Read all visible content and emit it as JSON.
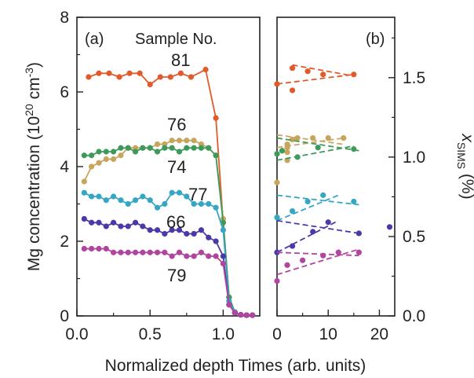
{
  "ylabel_left": "Mg concentration (10",
  "ylabel_left_sup": "20",
  "ylabel_left_unit": " cm",
  "ylabel_left_unit_sup": "-3",
  "ylabel_left_close": ")",
  "xlabel": "Normalized depth Times (arb. units)",
  "ylabel_right_main": "x",
  "ylabel_right_sub": "SIMS",
  "ylabel_right_unit": " (%)",
  "legend_title": "Sample No.",
  "panel_a_label": "(a)",
  "panel_b_label": "(b)",
  "colors": {
    "81": "#e05a2b",
    "76": "#c9a55c",
    "74": "#3d9a5a",
    "77": "#35a7c4",
    "66": "#4a3aa8",
    "79": "#b0449e"
  },
  "chart_data": [
    {
      "type": "line",
      "panel": "a",
      "xlim": [
        0.0,
        1.25
      ],
      "ylim": [
        0,
        8
      ],
      "xticks": [
        "0.0",
        "0.5",
        "1.0"
      ],
      "yticks": [
        "0",
        "2",
        "4",
        "6",
        "8"
      ],
      "series": [
        {
          "name": "81",
          "x": [
            0.08,
            0.15,
            0.22,
            0.29,
            0.36,
            0.43,
            0.5,
            0.57,
            0.64,
            0.71,
            0.78,
            0.88,
            0.95,
            1.0,
            1.04,
            1.08,
            1.12,
            1.16,
            1.2
          ],
          "y": [
            6.4,
            6.5,
            6.5,
            6.4,
            6.5,
            6.5,
            6.2,
            6.4,
            6.4,
            6.5,
            6.4,
            6.6,
            5.3,
            2.5,
            0.5,
            0.1,
            0.03,
            0.02,
            0.02
          ]
        },
        {
          "name": "76",
          "x": [
            0.05,
            0.1,
            0.15,
            0.2,
            0.25,
            0.3,
            0.35,
            0.4,
            0.45,
            0.5,
            0.55,
            0.6,
            0.65,
            0.7,
            0.75,
            0.8,
            0.85,
            0.9,
            0.95,
            1.0,
            1.04,
            1.08,
            1.12,
            1.16,
            1.2
          ],
          "y": [
            3.6,
            4.0,
            4.1,
            4.2,
            4.2,
            4.3,
            4.5,
            4.5,
            4.5,
            4.5,
            4.6,
            4.6,
            4.7,
            4.7,
            4.7,
            4.7,
            4.6,
            4.5,
            4.3,
            2.6,
            0.5,
            0.1,
            0.03,
            0.02,
            0.02
          ]
        },
        {
          "name": "74",
          "x": [
            0.05,
            0.1,
            0.15,
            0.2,
            0.25,
            0.3,
            0.35,
            0.4,
            0.45,
            0.5,
            0.55,
            0.6,
            0.65,
            0.7,
            0.75,
            0.8,
            0.85,
            0.9,
            0.95,
            1.0,
            1.04,
            1.08,
            1.12,
            1.16,
            1.2
          ],
          "y": [
            4.3,
            4.3,
            4.4,
            4.4,
            4.4,
            4.5,
            4.5,
            4.4,
            4.5,
            4.5,
            4.4,
            4.5,
            4.5,
            4.4,
            4.5,
            4.5,
            4.5,
            4.5,
            4.3,
            2.5,
            0.5,
            0.1,
            0.03,
            0.02,
            0.02
          ]
        },
        {
          "name": "77",
          "x": [
            0.05,
            0.1,
            0.15,
            0.2,
            0.25,
            0.3,
            0.35,
            0.4,
            0.45,
            0.5,
            0.55,
            0.6,
            0.65,
            0.7,
            0.75,
            0.8,
            0.85,
            0.9,
            0.95,
            1.0,
            1.04,
            1.08,
            1.12,
            1.16,
            1.2
          ],
          "y": [
            3.3,
            3.2,
            3.2,
            3.1,
            3.2,
            3.1,
            3.0,
            3.1,
            3.2,
            3.1,
            2.9,
            3.0,
            3.3,
            3.3,
            3.2,
            3.0,
            3.0,
            3.0,
            2.9,
            2.3,
            0.4,
            0.1,
            0.03,
            0.02,
            0.02
          ]
        },
        {
          "name": "66",
          "x": [
            0.05,
            0.1,
            0.15,
            0.2,
            0.25,
            0.3,
            0.35,
            0.4,
            0.45,
            0.5,
            0.55,
            0.6,
            0.65,
            0.7,
            0.75,
            0.8,
            0.85,
            0.9,
            0.95,
            1.0,
            1.04,
            1.08,
            1.12,
            1.16,
            1.2
          ],
          "y": [
            2.6,
            2.5,
            2.5,
            2.4,
            2.5,
            2.4,
            2.4,
            2.5,
            2.4,
            2.3,
            2.3,
            2.2,
            2.3,
            2.3,
            2.2,
            2.2,
            2.3,
            2.1,
            2.0,
            1.6,
            0.3,
            0.08,
            0.03,
            0.02,
            0.02
          ]
        },
        {
          "name": "79",
          "x": [
            0.05,
            0.1,
            0.15,
            0.2,
            0.25,
            0.3,
            0.35,
            0.4,
            0.45,
            0.5,
            0.55,
            0.6,
            0.65,
            0.7,
            0.75,
            0.8,
            0.85,
            0.9,
            0.95,
            1.0,
            1.04,
            1.08,
            1.12,
            1.16,
            1.2
          ],
          "y": [
            1.8,
            1.8,
            1.8,
            1.8,
            1.7,
            1.7,
            1.7,
            1.7,
            1.7,
            1.7,
            1.7,
            1.7,
            1.6,
            1.7,
            1.6,
            1.6,
            1.7,
            1.6,
            1.6,
            1.4,
            0.3,
            0.08,
            0.03,
            0.02,
            0.02
          ]
        }
      ]
    },
    {
      "type": "scatter",
      "panel": "b",
      "xlim": [
        0,
        23
      ],
      "ylim": [
        0.0,
        1.88
      ],
      "xticks": [
        "0",
        "10",
        "20"
      ],
      "yticks": [
        "0.0",
        "0.5",
        "1.0",
        "1.5"
      ],
      "series": [
        {
          "name": "81",
          "x": [
            0,
            3,
            3,
            6,
            9,
            15
          ],
          "y": [
            1.46,
            1.42,
            1.56,
            1.54,
            1.52,
            1.52
          ],
          "fit": [
            [
              0,
              1.46
            ],
            [
              15,
              1.52
            ],
            [
              3,
              1.58
            ],
            [
              15,
              1.51
            ]
          ]
        },
        {
          "name": "76",
          "x": [
            0,
            2,
            2,
            2,
            2,
            3,
            4,
            7,
            10,
            13
          ],
          "y": [
            0.84,
            0.98,
            1.03,
            1.06,
            1.08,
            1.11,
            1.12,
            1.12,
            1.12,
            1.12
          ],
          "fit": [
            [
              0,
              1.14
            ],
            [
              13,
              1.08
            ],
            [
              0,
              1.06
            ],
            [
              13,
              1.12
            ]
          ]
        },
        {
          "name": "74",
          "x": [
            0,
            1,
            4,
            8,
            15
          ],
          "y": [
            1.02,
            1.04,
            1.0,
            1.06,
            1.05
          ],
          "fit": [
            [
              0,
              1.12
            ],
            [
              16,
              1.04
            ],
            [
              0,
              0.98
            ],
            [
              15,
              1.07
            ]
          ]
        },
        {
          "name": "77",
          "x": [
            0,
            3,
            6,
            9,
            15
          ],
          "y": [
            0.62,
            0.66,
            0.72,
            0.76,
            0.72
          ],
          "fit": [
            [
              0,
              0.76
            ],
            [
              16,
              0.7
            ],
            [
              0,
              0.6
            ],
            [
              12,
              0.76
            ]
          ]
        },
        {
          "name": "66",
          "x": [
            0,
            3,
            7,
            10,
            16,
            22
          ],
          "y": [
            0.4,
            0.44,
            0.53,
            0.59,
            0.52,
            0.56
          ],
          "fit": [
            [
              0,
              0.6
            ],
            [
              16,
              0.52
            ],
            [
              0,
              0.4
            ],
            [
              12,
              0.6
            ]
          ]
        },
        {
          "name": "79",
          "x": [
            0,
            2,
            5,
            9,
            12,
            16
          ],
          "y": [
            0.22,
            0.32,
            0.35,
            0.38,
            0.4,
            0.4
          ],
          "fit": [
            [
              0,
              0.4
            ],
            [
              16,
              0.38
            ],
            [
              0,
              0.26
            ],
            [
              16,
              0.42
            ]
          ]
        }
      ]
    }
  ]
}
